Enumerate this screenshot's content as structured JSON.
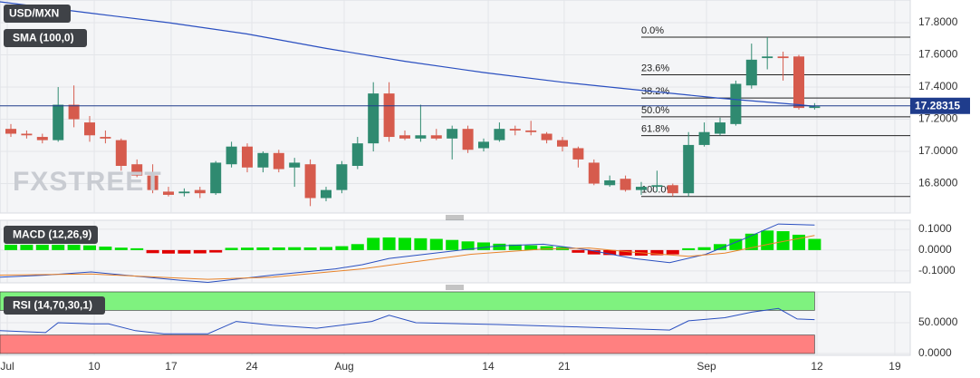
{
  "chart_data": [
    {
      "type": "candlestick",
      "title": "USD/MXN",
      "watermark": "FXSTREET",
      "up_color": "#2f8a70",
      "down_color": "#d65b4d",
      "x": [
        0,
        1,
        2,
        3,
        4,
        5,
        6,
        7,
        8,
        9,
        10,
        11,
        12,
        13,
        14,
        15,
        16,
        17,
        18,
        19,
        20,
        21,
        22,
        23,
        24,
        25,
        26,
        27,
        28,
        29,
        30,
        31,
        32,
        33,
        34,
        35,
        36,
        37,
        38,
        39,
        40,
        41,
        42,
        43,
        44,
        45,
        46,
        47,
        48,
        49,
        50,
        51
      ],
      "open": [
        17.14,
        17.11,
        17.09,
        17.07,
        17.29,
        17.18,
        17.09,
        17.07,
        16.92,
        16.85,
        16.75,
        16.74,
        16.76,
        16.74,
        16.92,
        17.03,
        16.9,
        16.99,
        16.9,
        16.92,
        16.71,
        16.76,
        16.91,
        17.05,
        17.36,
        17.1,
        17.08,
        17.1,
        17.08,
        17.14,
        17.02,
        17.07,
        17.14,
        17.13,
        17.11,
        17.07,
        17.02,
        16.93,
        16.79,
        16.83,
        16.76,
        16.78,
        16.79,
        16.74,
        17.04,
        17.11,
        17.17,
        17.41,
        17.58,
        17.59,
        17.59,
        17.27
      ],
      "high": [
        17.17,
        17.13,
        17.11,
        17.4,
        17.41,
        17.22,
        17.13,
        17.08,
        16.95,
        16.92,
        16.78,
        16.77,
        16.78,
        16.94,
        17.06,
        17.05,
        17.0,
        17.01,
        16.96,
        16.95,
        16.78,
        16.94,
        17.09,
        17.43,
        17.43,
        17.13,
        17.29,
        17.14,
        17.16,
        17.16,
        17.08,
        17.18,
        17.16,
        17.19,
        17.12,
        17.09,
        17.03,
        16.95,
        16.85,
        16.85,
        16.81,
        16.88,
        16.8,
        17.12,
        17.18,
        17.21,
        17.44,
        17.67,
        17.71,
        17.62,
        17.6,
        17.3
      ],
      "low": [
        17.09,
        17.08,
        17.05,
        17.06,
        17.15,
        17.06,
        17.05,
        16.88,
        16.84,
        16.74,
        16.72,
        16.72,
        16.71,
        16.73,
        16.9,
        16.87,
        16.87,
        16.87,
        16.78,
        16.66,
        16.69,
        16.74,
        16.89,
        17.0,
        17.06,
        17.07,
        17.06,
        17.07,
        16.95,
        16.99,
        17.0,
        17.06,
        17.1,
        17.1,
        17.05,
        17.0,
        16.9,
        16.79,
        16.78,
        16.75,
        16.73,
        16.75,
        16.72,
        16.72,
        17.03,
        17.1,
        17.16,
        17.39,
        17.51,
        17.44,
        17.26,
        17.26
      ],
      "close": [
        17.11,
        17.1,
        17.07,
        17.29,
        17.2,
        17.1,
        17.08,
        16.91,
        16.85,
        16.76,
        16.73,
        16.75,
        16.74,
        16.93,
        17.03,
        16.9,
        16.99,
        16.89,
        16.93,
        16.71,
        16.76,
        16.92,
        17.05,
        17.36,
        17.09,
        17.08,
        17.1,
        17.08,
        17.14,
        17.01,
        17.06,
        17.14,
        17.13,
        17.12,
        17.07,
        17.03,
        16.95,
        16.8,
        16.82,
        16.76,
        16.78,
        16.79,
        16.74,
        17.04,
        17.12,
        17.18,
        17.42,
        17.57,
        17.59,
        17.58,
        17.27,
        17.28
      ],
      "sma": {
        "name": "SMA (100,0)",
        "color": "#2a4fc0",
        "x": [
          -0.69,
          5,
          10,
          15,
          20,
          25,
          30,
          35,
          40,
          45,
          50,
          51
        ],
        "values": [
          17.93,
          17.86,
          17.8,
          17.73,
          17.64,
          17.56,
          17.49,
          17.43,
          17.38,
          17.33,
          17.29,
          17.28
        ]
      },
      "last_price": 17.28315,
      "fib_start_x": 40,
      "fib_levels": [
        {
          "label": "0.0%",
          "value": 17.71
        },
        {
          "label": "23.6%",
          "value": 17.476
        },
        {
          "label": "38.2%",
          "value": 17.332
        },
        {
          "label": "50.0%",
          "value": 17.215
        },
        {
          "label": "61.8%",
          "value": 17.098
        },
        {
          "label": "100.0%",
          "value": 16.72
        }
      ],
      "xlim": [
        -0.69,
        57.07
      ],
      "ylim": [
        16.617,
        17.941
      ],
      "yticks": [
        {
          "value": 17.8,
          "label": "17.8000"
        },
        {
          "value": 17.6,
          "label": "17.6000"
        },
        {
          "value": 17.4,
          "label": "17.4000"
        },
        {
          "value": 17.2,
          "label": "17.2000"
        },
        {
          "value": 17.0,
          "label": "17.0000"
        },
        {
          "value": 16.8,
          "label": "16.8000"
        }
      ]
    },
    {
      "type": "macd",
      "title": "MACD (12,26,9)",
      "histogram": {
        "pos_color": "#00e000",
        "neg_color": "#e00000",
        "values": [
          0.017,
          0.017,
          0.017,
          0.017,
          0.017,
          0.014,
          0.008,
          0.003,
          0.0,
          -0.006,
          -0.008,
          -0.008,
          -0.007,
          -0.003,
          0.002,
          0.003,
          0.004,
          0.004,
          0.005,
          0.004,
          0.006,
          0.01,
          0.02,
          0.05,
          0.052,
          0.05,
          0.048,
          0.045,
          0.04,
          0.033,
          0.028,
          0.022,
          0.018,
          0.014,
          0.01,
          0.006,
          -0.004,
          -0.012,
          -0.015,
          -0.017,
          -0.018,
          -0.016,
          -0.012,
          0.0,
          0.005,
          0.02,
          0.045,
          0.07,
          0.085,
          0.082,
          0.065,
          0.045
        ]
      },
      "series": [
        {
          "color": "#2a4fc0",
          "x": [
            -0.69,
            2.2,
            5.1,
            7.9,
            10.8,
            12.5,
            16.6,
            20.6,
            22.3,
            24.0,
            28.0,
            30.9,
            33.8,
            36.7,
            39.5,
            41.8,
            44.1,
            46.4,
            48.7,
            51.0
          ],
          "values": [
            -0.13,
            -0.12,
            -0.105,
            -0.125,
            -0.145,
            -0.155,
            -0.12,
            -0.09,
            -0.07,
            -0.04,
            -0.005,
            0.02,
            0.028,
            0.0,
            -0.04,
            -0.06,
            -0.02,
            0.05,
            0.125,
            0.12
          ]
        },
        {
          "color": "#e8832a",
          "x": [
            -0.69,
            5.1,
            10.8,
            12.5,
            16.6,
            22.3,
            25.2,
            29.2,
            33.8,
            36.7,
            39.5,
            43.0,
            45.3,
            48.2,
            51.0
          ],
          "values": [
            -0.12,
            -0.115,
            -0.135,
            -0.14,
            -0.13,
            -0.09,
            -0.06,
            -0.02,
            0.005,
            0.01,
            -0.01,
            -0.03,
            -0.015,
            0.03,
            0.07
          ]
        }
      ],
      "ylim": [
        -0.157,
        0.143
      ],
      "yticks": [
        {
          "value": 0.1,
          "label": "0.1000"
        },
        {
          "value": 0.0,
          "label": "0.0000"
        },
        {
          "value": -0.1,
          "label": "-0.1000"
        }
      ]
    },
    {
      "type": "rsi",
      "title": "RSI (14,70,30,1)",
      "bands": [
        {
          "from": 70,
          "to": 100,
          "color": "#7ff27f"
        },
        {
          "from": 0,
          "to": 30,
          "color": "#ff8080"
        }
      ],
      "band_end_x": 51,
      "series": [
        {
          "color": "#2a4fc0",
          "x": [
            -0.69,
            2.2,
            3.0,
            5.1,
            6.2,
            7.9,
            9.7,
            12.5,
            14.3,
            16.6,
            19.4,
            22.9,
            24.0,
            25.7,
            30.9,
            36.1,
            39.5,
            41.8,
            43.0,
            45.3,
            47.0,
            48.7,
            49.9,
            51.0
          ],
          "values": [
            37,
            34,
            50,
            48,
            48,
            37,
            32,
            32,
            52,
            46,
            41,
            52,
            62,
            50,
            47,
            43,
            40,
            38,
            53,
            58,
            67,
            73,
            56,
            55
          ]
        }
      ],
      "ylim": [
        -3,
        100
      ],
      "yticks": [
        {
          "value": 50,
          "label": "50.0000"
        },
        {
          "value": 0,
          "label": "0.0000"
        }
      ],
      "xticks": [
        {
          "value": -0.23,
          "label": "Jul"
        },
        {
          "value": 5.29,
          "label": "10"
        },
        {
          "value": 10.17,
          "label": "17"
        },
        {
          "value": 15.29,
          "label": "24"
        },
        {
          "value": 21.15,
          "label": "Aug"
        },
        {
          "value": 30.29,
          "label": "14"
        },
        {
          "value": 35.11,
          "label": "21"
        },
        {
          "value": 44.14,
          "label": "Sep"
        },
        {
          "value": 51.15,
          "label": "12"
        },
        {
          "value": 56.09,
          "label": "19"
        }
      ]
    }
  ]
}
